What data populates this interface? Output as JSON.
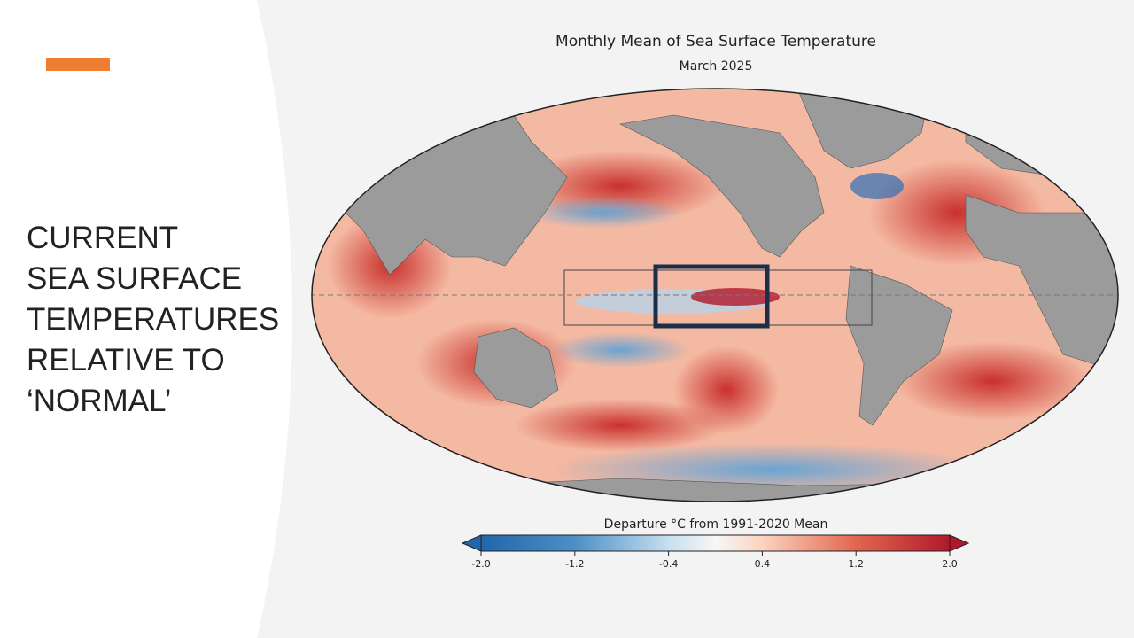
{
  "slide": {
    "heading_lines": [
      "CURRENT",
      "SEA SURFACE",
      "TEMPERATURES",
      "RELATIVE TO",
      "‘NORMAL’"
    ]
  },
  "map": {
    "title": "Monthly Mean of Sea Surface Temperature",
    "subtitle": "March 2025",
    "colorbar": {
      "label": "Departure °C from 1991-2020 Mean",
      "range": [
        -2,
        2
      ],
      "ticks": [
        {
          "value": -2,
          "label": "-2.0"
        },
        {
          "value": -1.2,
          "label": "-1.2"
        },
        {
          "value": -0.4,
          "label": "-0.4"
        },
        {
          "value": 0.4,
          "label": "0.4"
        },
        {
          "value": 1.2,
          "label": "1.2"
        },
        {
          "value": 2,
          "label": "2.0"
        }
      ]
    }
  }
}
